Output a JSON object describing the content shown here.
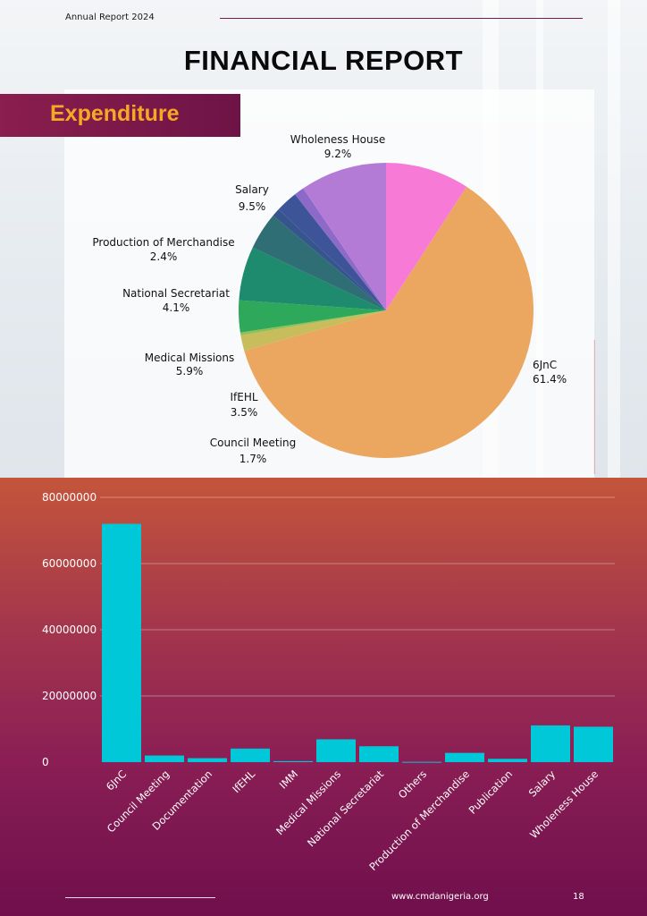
{
  "header": {
    "report_label": "Annual Report 2024",
    "title": "FINANCIAL REPORT",
    "section": "Expenditure"
  },
  "footer": {
    "url": "www.cmdanigeria.org",
    "page_number": "18"
  },
  "chart_data": [
    {
      "type": "pie",
      "slices": [
        {
          "label": "Wholeness House",
          "percent": 9.2,
          "percent_label": "9.2%",
          "color": "#f77ad6"
        },
        {
          "label": "6JnC",
          "percent": 61.4,
          "percent_label": "61.4%",
          "color": "#eba760"
        },
        {
          "label": "Council Meeting",
          "percent": 1.7,
          "percent_label": "1.7%",
          "color": "#c7bd5c"
        },
        {
          "label": "IMM",
          "percent": 0.3,
          "percent_label": "",
          "color": "#8fbf55"
        },
        {
          "label": "IfEHL",
          "percent": 3.5,
          "percent_label": "3.5%",
          "color": "#2ea85a"
        },
        {
          "label": "Medical Missions",
          "percent": 5.9,
          "percent_label": "5.9%",
          "color": "#1e8a6e"
        },
        {
          "label": "National Secretariat",
          "percent": 4.1,
          "percent_label": "4.1%",
          "color": "#2e6e74"
        },
        {
          "label": "Publication",
          "percent": 0.9,
          "percent_label": "",
          "color": "#36558c"
        },
        {
          "label": "Production of Merchandise",
          "percent": 2.4,
          "percent_label": "2.4%",
          "color": "#3e5498"
        },
        {
          "label": "Documentation",
          "percent": 1.1,
          "percent_label": "",
          "color": "#8e6ac8"
        },
        {
          "label": "Salary",
          "percent": 9.5,
          "percent_label": "9.5%",
          "color": "#b37bd6"
        }
      ]
    },
    {
      "type": "bar",
      "categories": [
        "6JnC",
        "Council Meeting",
        "Documentation",
        "IfEHL",
        "IMM",
        "Medical Missions",
        "National Secretariat",
        "Others",
        "Production of Merchandise",
        "Publication",
        "Salary",
        "Wholeness House"
      ],
      "values": [
        72000000,
        2000000,
        1200000,
        4100000,
        300000,
        6900000,
        4800000,
        100000,
        2800000,
        1000000,
        11100000,
        10700000
      ],
      "yticks": [
        "0",
        "20000000",
        "40000000",
        "60000000",
        "80000000"
      ],
      "ylim": [
        0,
        80000000
      ],
      "bar_color": "#00c8d8",
      "grid": true
    }
  ]
}
